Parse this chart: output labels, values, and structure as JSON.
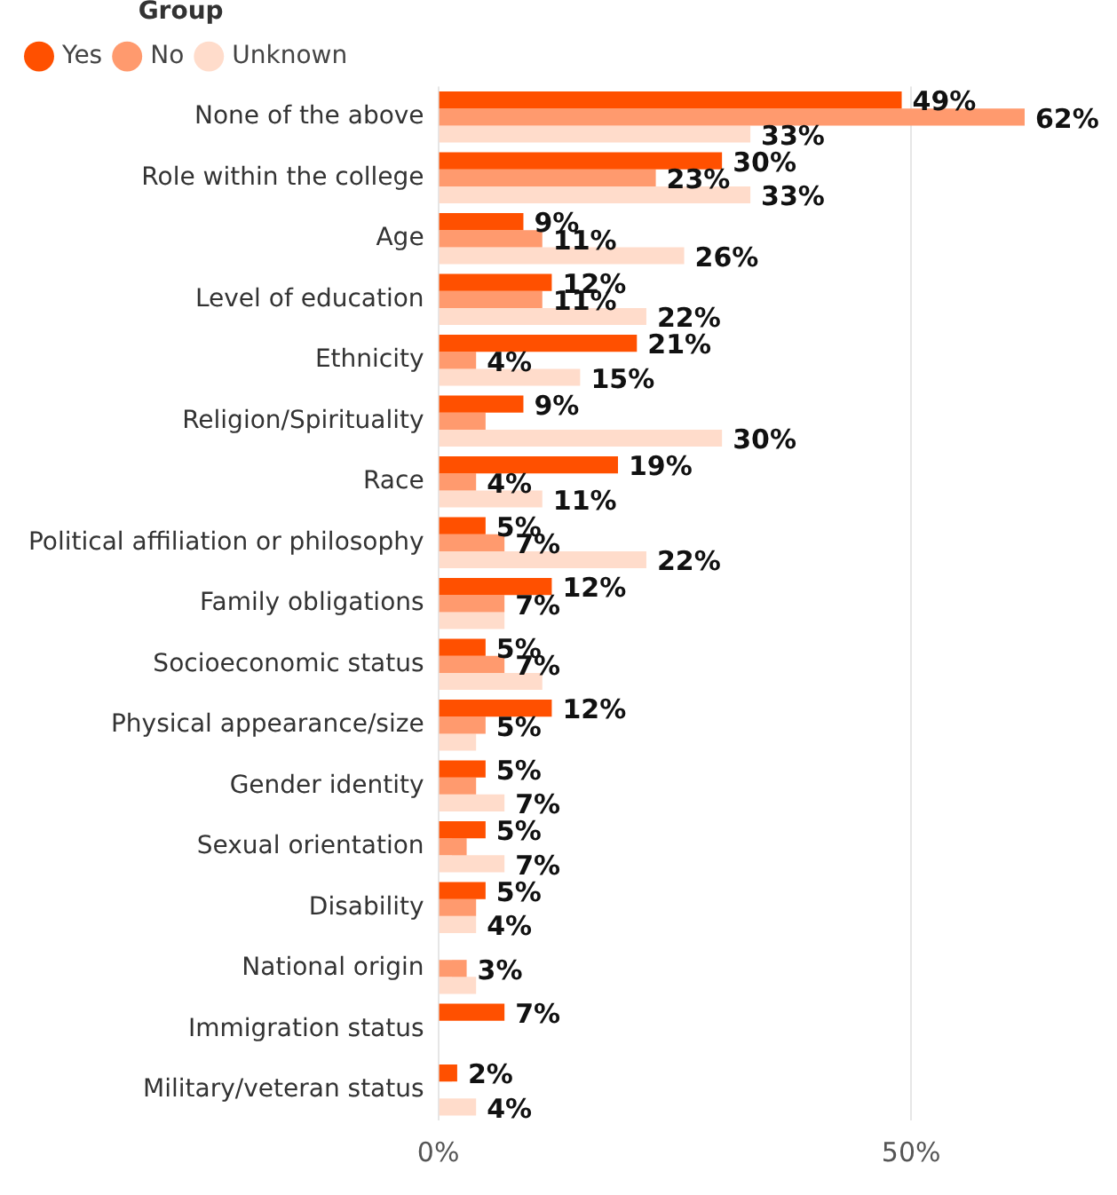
{
  "chart_data": {
    "type": "bar",
    "orientation": "horizontal",
    "legend_title": "Group",
    "legend": "top left",
    "categories": [
      "None of the above",
      "Role within the college",
      "Age",
      "Level of education",
      "Ethnicity",
      "Religion/Spirituality",
      "Race",
      "Political affiliation or philosophy",
      "Family obligations",
      "Socioeconomic status",
      "Physical appearance/size",
      "Gender identity",
      "Sexual orientation",
      "Disability",
      "National origin",
      "Immigration status",
      "Military/veteran status"
    ],
    "series": [
      {
        "name": "Yes",
        "color": "#ff5000",
        "values": [
          49,
          30,
          9,
          12,
          21,
          9,
          19,
          5,
          12,
          5,
          12,
          5,
          5,
          5,
          null,
          7,
          2
        ],
        "value_labels": [
          "49%",
          "30%",
          "9%",
          "12%",
          "21%",
          "9%",
          "19%",
          "5%",
          "12%",
          "5%",
          "12%",
          "5%",
          "5%",
          "5%",
          null,
          "7%",
          "2%"
        ]
      },
      {
        "name": "No",
        "color": "#ff9a6e",
        "values": [
          62,
          23,
          11,
          11,
          4,
          5,
          4,
          7,
          7,
          7,
          5,
          4,
          3,
          4,
          3,
          null,
          null
        ],
        "value_labels": [
          "62%",
          "23%",
          "11%",
          "11%",
          "4%",
          null,
          "4%",
          "7%",
          "7%",
          "7%",
          "5%",
          null,
          null,
          null,
          "3%",
          null,
          null
        ]
      },
      {
        "name": "Unknown",
        "color": "#ffdccb",
        "values": [
          33,
          33,
          26,
          22,
          15,
          30,
          11,
          22,
          7,
          11,
          4,
          7,
          7,
          4,
          4,
          null,
          4
        ],
        "value_labels": [
          "33%",
          "33%",
          "26%",
          "22%",
          "15%",
          "30%",
          "11%",
          "22%",
          null,
          null,
          null,
          "7%",
          "7%",
          "4%",
          null,
          null,
          "4%"
        ]
      }
    ],
    "xlim": [
      0,
      62
    ],
    "xticks": [
      {
        "value": 0,
        "label": "0%"
      },
      {
        "value": 50,
        "label": "50%"
      }
    ],
    "grid": "x"
  }
}
